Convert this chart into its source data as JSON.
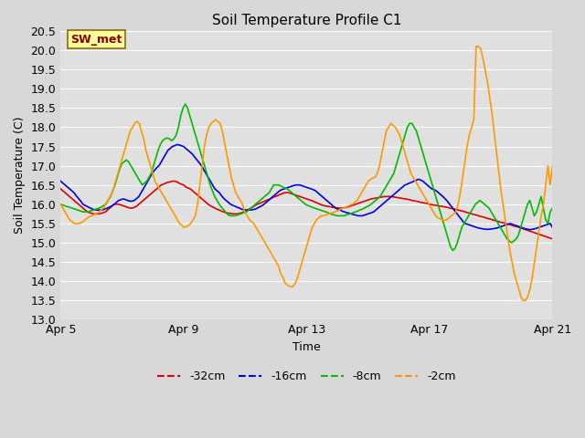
{
  "title": "Soil Temperature Profile C1",
  "xlabel": "Time",
  "ylabel": "Soil Temperature (C)",
  "ylim": [
    13.0,
    20.5
  ],
  "yticks": [
    13.0,
    13.5,
    14.0,
    14.5,
    15.0,
    15.5,
    16.0,
    16.5,
    17.0,
    17.5,
    18.0,
    18.5,
    19.0,
    19.5,
    20.0,
    20.5
  ],
  "figure_bg_color": "#d8d8d8",
  "plot_bg_color": "#e0e0e0",
  "grid_color": "#ffffff",
  "annotation_text": "SW_met",
  "annotation_bg": "#ffff99",
  "annotation_border": "#8b6914",
  "annotation_text_color": "#8b0000",
  "line_colors": {
    "-32cm": "#dd0000",
    "-16cm": "#0000dd",
    "-8cm": "#00bb00",
    "-2cm": "#ff9900"
  },
  "legend_labels": [
    "-32cm",
    "-16cm",
    "-8cm",
    "-2cm"
  ],
  "x_tick_labels": [
    "Apr 5",
    "Apr 9",
    "Apr 13",
    "Apr 17",
    "Apr 21"
  ],
  "x_tick_positions": [
    0,
    96,
    192,
    288,
    384
  ],
  "series": {
    "-32cm": [
      16.4,
      16.35,
      16.3,
      16.25,
      16.2,
      16.15,
      16.1,
      16.05,
      16.0,
      15.95,
      15.9,
      15.85,
      15.8,
      15.78,
      15.76,
      15.75,
      15.75,
      15.75,
      15.76,
      15.78,
      15.8,
      15.85,
      15.9,
      15.95,
      16.0,
      16.0,
      16.0,
      15.98,
      15.96,
      15.94,
      15.92,
      15.9,
      15.9,
      15.92,
      15.95,
      16.0,
      16.05,
      16.1,
      16.15,
      16.2,
      16.25,
      16.3,
      16.35,
      16.4,
      16.45,
      16.5,
      16.52,
      16.55,
      16.57,
      16.58,
      16.6,
      16.6,
      16.58,
      16.55,
      16.52,
      16.5,
      16.45,
      16.42,
      16.4,
      16.35,
      16.3,
      16.25,
      16.2,
      16.15,
      16.1,
      16.05,
      16.0,
      15.96,
      15.93,
      15.9,
      15.87,
      15.85,
      15.82,
      15.8,
      15.78,
      15.77,
      15.76,
      15.75,
      15.75,
      15.75,
      15.76,
      15.78,
      15.8,
      15.83,
      15.86,
      15.9,
      15.93,
      15.97,
      16.0,
      16.02,
      16.05,
      16.07,
      16.1,
      16.12,
      16.15,
      16.18,
      16.2,
      16.22,
      16.25,
      16.27,
      16.3,
      16.3,
      16.3,
      16.28,
      16.26,
      16.24,
      16.22,
      16.2,
      16.18,
      16.16,
      16.14,
      16.12,
      16.1,
      16.08,
      16.05,
      16.03,
      16.0,
      15.98,
      15.96,
      15.95,
      15.94,
      15.93,
      15.92,
      15.91,
      15.9,
      15.9,
      15.9,
      15.91,
      15.92,
      15.94,
      15.96,
      15.98,
      16.0,
      16.02,
      16.04,
      16.06,
      16.08,
      16.1,
      16.12,
      16.14,
      16.15,
      16.16,
      16.17,
      16.18,
      16.19,
      16.2,
      16.2,
      16.2,
      16.2,
      16.19,
      16.18,
      16.17,
      16.16,
      16.15,
      16.14,
      16.13,
      16.12,
      16.1,
      16.09,
      16.08,
      16.07,
      16.05,
      16.04,
      16.03,
      16.02,
      16.0,
      15.99,
      15.98,
      15.97,
      15.96,
      15.95,
      15.94,
      15.93,
      15.92,
      15.9,
      15.89,
      15.88,
      15.86,
      15.85,
      15.83,
      15.82,
      15.8,
      15.78,
      15.77,
      15.75,
      15.73,
      15.72,
      15.7,
      15.68,
      15.67,
      15.65,
      15.63,
      15.62,
      15.6,
      15.58,
      15.57,
      15.55,
      15.53,
      15.52,
      15.5,
      15.48,
      15.47,
      15.45,
      15.43,
      15.42,
      15.4,
      15.38,
      15.36,
      15.34,
      15.32,
      15.3,
      15.28,
      15.26,
      15.24,
      15.22,
      15.2,
      15.18,
      15.16,
      15.14,
      15.12,
      15.1
    ],
    "-16cm": [
      16.6,
      16.55,
      16.5,
      16.45,
      16.4,
      16.35,
      16.3,
      16.22,
      16.15,
      16.08,
      16.0,
      15.97,
      15.94,
      15.91,
      15.88,
      15.86,
      15.85,
      15.85,
      15.85,
      15.86,
      15.88,
      15.9,
      15.93,
      15.96,
      16.0,
      16.05,
      16.1,
      16.12,
      16.14,
      16.12,
      16.1,
      16.08,
      16.08,
      16.1,
      16.15,
      16.2,
      16.3,
      16.4,
      16.5,
      16.6,
      16.7,
      16.8,
      16.88,
      16.95,
      17.0,
      17.1,
      17.2,
      17.3,
      17.4,
      17.45,
      17.5,
      17.52,
      17.55,
      17.54,
      17.52,
      17.5,
      17.45,
      17.4,
      17.35,
      17.3,
      17.22,
      17.15,
      17.08,
      17.0,
      16.9,
      16.8,
      16.7,
      16.6,
      16.5,
      16.4,
      16.35,
      16.3,
      16.22,
      16.15,
      16.1,
      16.05,
      16.0,
      15.97,
      15.95,
      15.92,
      15.9,
      15.87,
      15.86,
      15.85,
      15.85,
      15.85,
      15.86,
      15.87,
      15.9,
      15.93,
      15.96,
      16.0,
      16.05,
      16.1,
      16.15,
      16.2,
      16.25,
      16.3,
      16.35,
      16.38,
      16.4,
      16.42,
      16.44,
      16.46,
      16.48,
      16.5,
      16.5,
      16.5,
      16.48,
      16.46,
      16.44,
      16.42,
      16.4,
      16.38,
      16.35,
      16.3,
      16.25,
      16.2,
      16.15,
      16.1,
      16.05,
      16.0,
      15.95,
      15.9,
      15.87,
      15.85,
      15.82,
      15.8,
      15.78,
      15.77,
      15.75,
      15.73,
      15.72,
      15.7,
      15.7,
      15.7,
      15.72,
      15.74,
      15.76,
      15.78,
      15.8,
      15.85,
      15.9,
      15.95,
      16.0,
      16.05,
      16.1,
      16.15,
      16.2,
      16.25,
      16.3,
      16.35,
      16.4,
      16.45,
      16.5,
      16.52,
      16.55,
      16.57,
      16.6,
      16.62,
      16.65,
      16.63,
      16.6,
      16.55,
      16.5,
      16.45,
      16.4,
      16.38,
      16.35,
      16.3,
      16.25,
      16.2,
      16.14,
      16.08,
      16.0,
      15.93,
      15.85,
      15.78,
      15.7,
      15.63,
      15.55,
      15.5,
      15.48,
      15.46,
      15.44,
      15.42,
      15.4,
      15.38,
      15.37,
      15.36,
      15.35,
      15.35,
      15.35,
      15.36,
      15.37,
      15.38,
      15.4,
      15.42,
      15.44,
      15.46,
      15.48,
      15.5,
      15.48,
      15.46,
      15.44,
      15.42,
      15.4,
      15.38,
      15.36,
      15.35,
      15.34,
      15.35,
      15.36,
      15.38,
      15.4,
      15.42,
      15.44,
      15.46,
      15.48,
      15.5,
      15.4
    ],
    "-8cm": [
      16.0,
      15.98,
      15.96,
      15.94,
      15.92,
      15.9,
      15.88,
      15.86,
      15.84,
      15.82,
      15.8,
      15.8,
      15.8,
      15.82,
      15.84,
      15.86,
      15.88,
      15.9,
      15.93,
      15.97,
      16.0,
      16.1,
      16.2,
      16.35,
      16.5,
      16.7,
      16.9,
      17.05,
      17.1,
      17.15,
      17.1,
      17.0,
      16.9,
      16.8,
      16.7,
      16.6,
      16.5,
      16.55,
      16.6,
      16.7,
      16.8,
      17.0,
      17.2,
      17.4,
      17.55,
      17.65,
      17.7,
      17.72,
      17.7,
      17.65,
      17.7,
      17.8,
      18.0,
      18.3,
      18.5,
      18.6,
      18.5,
      18.3,
      18.1,
      17.9,
      17.7,
      17.5,
      17.3,
      17.1,
      16.9,
      16.7,
      16.5,
      16.35,
      16.2,
      16.1,
      16.0,
      15.92,
      15.85,
      15.78,
      15.72,
      15.7,
      15.7,
      15.7,
      15.72,
      15.74,
      15.76,
      15.78,
      15.8,
      15.85,
      15.9,
      15.95,
      16.0,
      16.05,
      16.1,
      16.15,
      16.2,
      16.25,
      16.3,
      16.4,
      16.5,
      16.5,
      16.5,
      16.48,
      16.45,
      16.42,
      16.4,
      16.35,
      16.3,
      16.25,
      16.2,
      16.15,
      16.1,
      16.05,
      16.0,
      15.97,
      15.95,
      15.92,
      15.9,
      15.88,
      15.86,
      15.84,
      15.82,
      15.8,
      15.78,
      15.75,
      15.73,
      15.72,
      15.7,
      15.7,
      15.7,
      15.7,
      15.72,
      15.74,
      15.76,
      15.78,
      15.8,
      15.82,
      15.85,
      15.87,
      15.9,
      15.93,
      15.96,
      16.0,
      16.05,
      16.1,
      16.15,
      16.2,
      16.3,
      16.4,
      16.5,
      16.6,
      16.7,
      16.8,
      17.0,
      17.2,
      17.4,
      17.6,
      17.8,
      18.0,
      18.1,
      18.1,
      18.0,
      17.9,
      17.7,
      17.5,
      17.3,
      17.1,
      16.9,
      16.7,
      16.5,
      16.3,
      16.1,
      15.9,
      15.7,
      15.5,
      15.3,
      15.1,
      14.9,
      14.8,
      14.85,
      15.0,
      15.2,
      15.4,
      15.5,
      15.6,
      15.7,
      15.8,
      15.9,
      16.0,
      16.05,
      16.1,
      16.05,
      16.0,
      15.95,
      15.9,
      15.8,
      15.7,
      15.6,
      15.5,
      15.4,
      15.3,
      15.2,
      15.1,
      15.05,
      15.0,
      15.05,
      15.1,
      15.2,
      15.4,
      15.6,
      15.8,
      16.0,
      16.1,
      15.9,
      15.7,
      15.8,
      16.0,
      16.2,
      15.9,
      15.6,
      15.5,
      15.8,
      15.9
    ],
    "-2cm": [
      16.0,
      15.9,
      15.8,
      15.7,
      15.6,
      15.55,
      15.5,
      15.5,
      15.5,
      15.52,
      15.55,
      15.6,
      15.65,
      15.68,
      15.7,
      15.73,
      15.76,
      15.8,
      15.85,
      15.9,
      16.0,
      16.1,
      16.2,
      16.3,
      16.5,
      16.7,
      16.9,
      17.1,
      17.3,
      17.5,
      17.7,
      17.9,
      18.0,
      18.1,
      18.15,
      18.1,
      17.9,
      17.7,
      17.4,
      17.2,
      17.0,
      16.8,
      16.6,
      16.5,
      16.4,
      16.3,
      16.2,
      16.1,
      16.0,
      15.9,
      15.8,
      15.7,
      15.6,
      15.5,
      15.45,
      15.4,
      15.42,
      15.45,
      15.5,
      15.6,
      15.7,
      16.0,
      16.5,
      17.0,
      17.5,
      17.8,
      18.0,
      18.1,
      18.15,
      18.2,
      18.15,
      18.1,
      17.9,
      17.6,
      17.3,
      17.0,
      16.7,
      16.5,
      16.3,
      16.2,
      16.1,
      16.0,
      15.8,
      15.7,
      15.6,
      15.55,
      15.5,
      15.4,
      15.3,
      15.2,
      15.1,
      15.0,
      14.9,
      14.8,
      14.7,
      14.6,
      14.5,
      14.4,
      14.2,
      14.1,
      13.95,
      13.9,
      13.87,
      13.85,
      13.9,
      14.0,
      14.2,
      14.4,
      14.6,
      14.8,
      15.0,
      15.2,
      15.4,
      15.5,
      15.6,
      15.65,
      15.7,
      15.7,
      15.72,
      15.74,
      15.76,
      15.78,
      15.8,
      15.82,
      15.85,
      15.88,
      15.9,
      15.92,
      15.95,
      15.98,
      16.0,
      16.05,
      16.1,
      16.2,
      16.3,
      16.4,
      16.5,
      16.6,
      16.65,
      16.68,
      16.7,
      16.8,
      17.0,
      17.3,
      17.6,
      17.9,
      18.0,
      18.1,
      18.05,
      18.0,
      17.9,
      17.8,
      17.6,
      17.4,
      17.2,
      17.0,
      16.8,
      16.7,
      16.6,
      16.5,
      16.4,
      16.3,
      16.2,
      16.1,
      16.0,
      15.9,
      15.8,
      15.7,
      15.65,
      15.62,
      15.6,
      15.58,
      15.6,
      15.65,
      15.7,
      15.75,
      15.8,
      16.0,
      16.3,
      16.7,
      17.1,
      17.5,
      17.8,
      18.0,
      18.2,
      20.1,
      20.1,
      20.05,
      19.8,
      19.5,
      19.2,
      18.8,
      18.4,
      17.9,
      17.4,
      16.9,
      16.4,
      16.0,
      15.6,
      15.2,
      14.8,
      14.5,
      14.2,
      14.0,
      13.8,
      13.6,
      13.5,
      13.5,
      13.6,
      13.8,
      14.1,
      14.5,
      14.9,
      15.3,
      15.7,
      16.0,
      16.5,
      17.0,
      16.5,
      17.0
    ]
  }
}
